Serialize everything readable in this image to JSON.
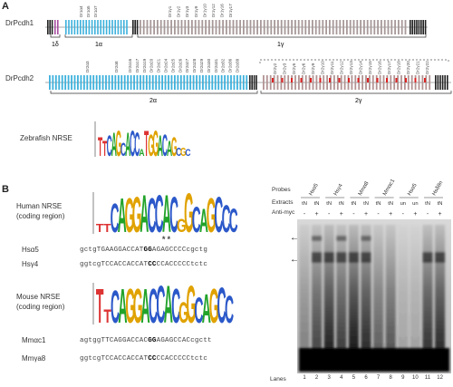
{
  "panelA": {
    "letter": "A",
    "row1": {
      "name": "DrPcdh1",
      "groups": [
        "1δ",
        "1α",
        "1γ"
      ],
      "alpha_exon_labels": [
        "Dr1α4",
        "Dr1α5",
        "Dr1α7"
      ],
      "gamma_exon_labels": [
        "Dr1γ1",
        "Dr1γ2",
        "Dr1γ3",
        "Dr1γ9",
        "Dr1γ10",
        "Dr1γ12",
        "Dr1γ16",
        "Dr1γ17"
      ]
    },
    "row2": {
      "name": "DrPcdh2",
      "groups": [
        "2α",
        "2γ"
      ],
      "alpha_exon_labels": [
        "Dr2α3",
        "Dr2α8",
        "Dr2α16",
        "Dr2α17",
        "Dr2α19",
        "Dr2α20",
        "Dr2α21",
        "Dr2α24",
        "Dr2α25",
        "Dr2α26",
        "Dr2α27",
        "Dr2α28",
        "Dr2α29",
        "Dr2α30",
        "Dr2α31",
        "Dr2α32",
        "Dr2α36",
        "Dr2α38"
      ],
      "gamma_exon_labels": [
        "Dr2γ2",
        "Dr2γ3",
        "Dr2γ5",
        "Dr2γ6",
        "Dr2γ9",
        "Dr2γ10",
        "Dr2γ11",
        "Dr2γ12",
        "Dr2γ13",
        "Dr2γ14",
        "Dr2γ15",
        "Dr2γ16",
        "Dr2γ17",
        "Dr2γ18",
        "Dr2γ20",
        "Dr2γ21",
        "Dr2γ22"
      ]
    },
    "motif_label": "Zebrafish NRSE",
    "motif_letters": "TTCAGCACCATGGACAGCGC"
  },
  "panelB": {
    "letter": "B",
    "human_motif_label": [
      "Human NRSE",
      "(coding region)"
    ],
    "human_motif_letters": "TTCAGGACCACGGCAGCCC",
    "mouse_motif_label": [
      "Mouse NRSE",
      "(coding region)"
    ],
    "mouse_motif_letters": "TTCAGGACCACGGCAGCC",
    "stars": "**",
    "sequences": [
      {
        "name": "Hsα5",
        "pre": "gctgTGAAGGACCAT",
        "bold": "GG",
        "post": "AGAGCCCCcgctg"
      },
      {
        "name": "Hsγ4",
        "pre": "ggtcgTCCACCACCAT",
        "bold": "CC",
        "post": "CCACCCCCtctc"
      },
      {
        "name": "Mmαc1",
        "pre": "agtggTTCAGGACCAC",
        "bold": "GG",
        "post": "AGAGCCACcgctt"
      },
      {
        "name": "Mmγa8",
        "pre": "ggtcgTCCACCACCAT",
        "bold": "CC",
        "post": "CCACCCCCtctc"
      }
    ]
  },
  "gel": {
    "probes_label": "Probes",
    "extracts_label": "Extracts",
    "antimyc_label": "Anti-myc",
    "lanes_label": "Lanes",
    "probes": [
      "Hsα5",
      "Hsγ4",
      "Mmα8",
      "Mmαc1",
      "Hsα5",
      "Hsδθn"
    ],
    "extracts": [
      "tN",
      "tN",
      "tN",
      "tN",
      "tN",
      "tN",
      "tN",
      "tN",
      "un",
      "un",
      "tN",
      "tN"
    ],
    "antimyc": [
      "-",
      "+",
      "-",
      "+",
      "-",
      "+",
      "-",
      "+",
      "-",
      "+",
      "-",
      "+"
    ],
    "lanes": [
      "1",
      "2",
      "3",
      "4",
      "5",
      "6",
      "7",
      "8",
      "9",
      "10",
      "11",
      "12"
    ],
    "arrow_glyph": "←"
  }
}
